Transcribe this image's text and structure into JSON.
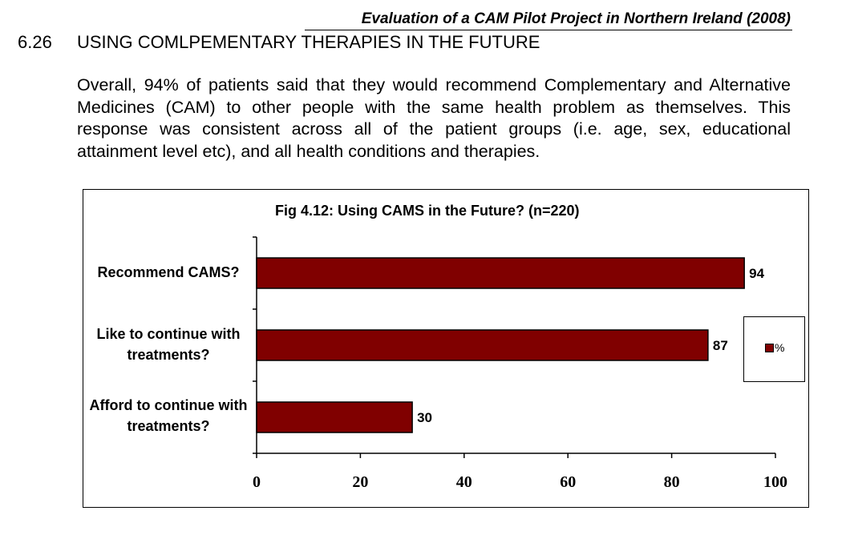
{
  "header": {
    "doc_title": "Evaluation of a CAM Pilot Project in Northern Ireland (2008)",
    "section_number": "6.26",
    "section_title": "USING COMLPEMENTARY THERAPIES IN THE FUTURE"
  },
  "body": {
    "paragraph": "Overall, 94% of patients said that they would recommend Complementary and Alternative Medicines (CAM) to other people with the same health problem as themselves.  This response was consistent across all of the patient groups (i.e. age, sex, educational attainment level etc), and all health conditions and therapies."
  },
  "chart_data": {
    "type": "bar",
    "orientation": "horizontal",
    "title": "Fig 4.12: Using CAMS in the Future? (n=220)",
    "categories": [
      "Recommend CAMS?",
      "Like to continue with treatments?",
      "Afford to continue with treatments?"
    ],
    "series": [
      {
        "name": "%",
        "values": [
          94,
          87,
          30
        ],
        "color": "#800000"
      }
    ],
    "xlim": [
      0,
      100
    ],
    "x_ticks": [
      0,
      20,
      40,
      60,
      80,
      100
    ],
    "legend_position": "right",
    "grid": false
  }
}
